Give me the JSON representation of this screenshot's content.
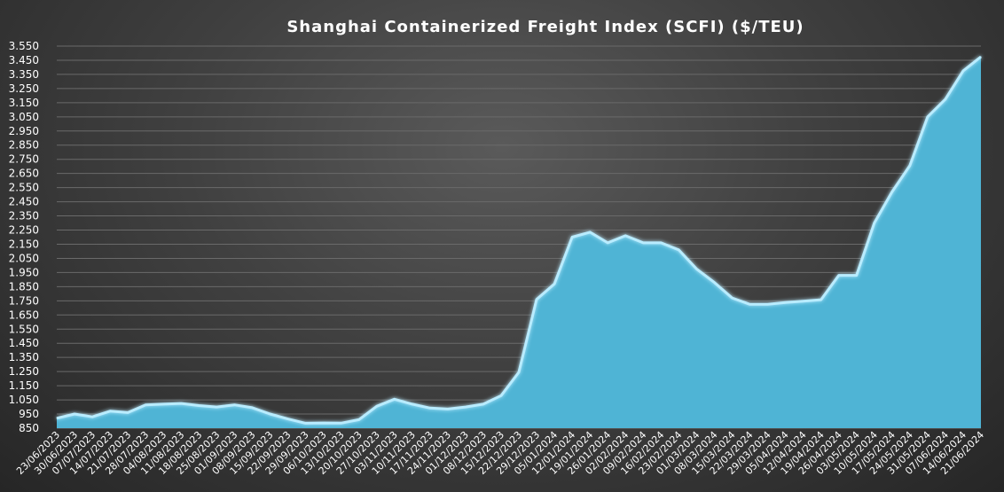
{
  "chart_data": {
    "type": "area",
    "title": "Shanghai  Containerized  Freight  Index  (SCFI) ($/TEU)",
    "xlabel": "",
    "ylabel": "",
    "ylim": [
      850,
      3550
    ],
    "yticks": [
      "3.550",
      "3.450",
      "3.350",
      "3.250",
      "3.150",
      "3.050",
      "2.950",
      "2.850",
      "2.750",
      "2.650",
      "2.550",
      "2.450",
      "2.350",
      "2.250",
      "2.150",
      "2.050",
      "1.950",
      "1.850",
      "1.750",
      "1.650",
      "1.550",
      "1.450",
      "1.350",
      "1.250",
      "1.150",
      "1.050",
      "950",
      "850"
    ],
    "ytick_values": [
      3550,
      3450,
      3350,
      3250,
      3150,
      3050,
      2950,
      2850,
      2750,
      2650,
      2550,
      2450,
      2350,
      2250,
      2150,
      2050,
      1950,
      1850,
      1750,
      1650,
      1550,
      1450,
      1350,
      1250,
      1150,
      1050,
      950,
      850
    ],
    "categories": [
      "23/06/2023",
      "30/06/2023",
      "07/07/2023",
      "14/07/2023",
      "21/07/2023",
      "28/07/2023",
      "04/08/2023",
      "11/08/2023",
      "18/08/2023",
      "25/08/2023",
      "01/09/2023",
      "08/09/2023",
      "15/09/2023",
      "22/09/2023",
      "29/09/2023",
      "06/10/2023",
      "13/10/2023",
      "20/10/2023",
      "27/10/2023",
      "03/11/2023",
      "10/11/2023",
      "17/11/2023",
      "24/11/2023",
      "01/12/2023",
      "08/12/2023",
      "15/12/2023",
      "22/12/2023",
      "29/12/2023",
      "05/01/2024",
      "12/01/2024",
      "19/01/2024",
      "26/01/2024",
      "02/02/2024",
      "09/02/2024",
      "16/02/2024",
      "23/02/2024",
      "01/03/2024",
      "08/03/2024",
      "15/03/2024",
      "22/03/2024",
      "29/03/2024",
      "05/04/2024",
      "12/04/2024",
      "19/04/2024",
      "26/04/2024",
      "03/05/2024",
      "10/05/2024",
      "17/05/2024",
      "24/05/2024",
      "31/05/2024",
      "07/06/2024",
      "14/06/2024",
      "21/06/2024"
    ],
    "values": [
      [
        0,
        920
      ],
      [
        1,
        950
      ],
      [
        2,
        930
      ],
      [
        3,
        970
      ],
      [
        4,
        960
      ],
      [
        5,
        1015
      ],
      [
        6,
        1020
      ],
      [
        7,
        1025
      ],
      [
        8,
        1010
      ],
      [
        9,
        1000
      ],
      [
        10,
        1015
      ],
      [
        11,
        995
      ],
      [
        12,
        950
      ],
      [
        13,
        915
      ],
      [
        14,
        885
      ],
      [
        15,
        887
      ],
      [
        16,
        886
      ],
      [
        17,
        910
      ],
      [
        18,
        1005
      ],
      [
        19,
        1055
      ],
      [
        20,
        1020
      ],
      [
        21,
        992
      ],
      [
        22,
        985
      ],
      [
        23,
        1000
      ],
      [
        24,
        1020
      ],
      [
        25,
        1080
      ],
      [
        26,
        1245
      ],
      [
        27,
        1760
      ],
      [
        28,
        1870
      ],
      [
        29,
        2200
      ],
      [
        30,
        2235
      ],
      [
        31,
        2160
      ],
      [
        32,
        2210
      ],
      [
        33,
        2160
      ],
      [
        34,
        2160
      ],
      [
        35,
        2110
      ],
      [
        36,
        1975
      ],
      [
        37,
        1880
      ],
      [
        38,
        1770
      ],
      [
        39,
        1725
      ],
      [
        40,
        1725
      ],
      [
        41,
        1738
      ],
      [
        42,
        1748
      ],
      [
        43,
        1758
      ],
      [
        44,
        1930
      ],
      [
        45,
        1930
      ],
      [
        46,
        2300
      ],
      [
        47,
        2520
      ],
      [
        48,
        2705
      ],
      [
        49,
        3050
      ],
      [
        50,
        3175
      ],
      [
        51,
        3375
      ],
      [
        52,
        3475
      ]
    ],
    "colors": {
      "area_fill": "#4fb4d5",
      "area_edge": "#b9ecff"
    },
    "grid": true,
    "legend": "none"
  }
}
